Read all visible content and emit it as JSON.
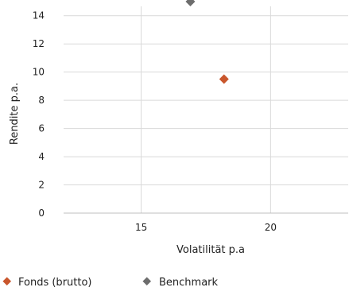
{
  "chart_data": {
    "type": "scatter",
    "title": "",
    "xlabel": "Volatilität p.a",
    "ylabel": "Rendite p.a.",
    "xlim": [
      12,
      23
    ],
    "ylim": [
      0,
      15
    ],
    "xticks": [
      15,
      20
    ],
    "yticks": [
      0,
      2,
      4,
      6,
      8,
      10,
      12,
      14
    ],
    "grid": {
      "vertical": true,
      "horizontal": true
    },
    "legend_position": "bottom-left",
    "series": [
      {
        "name": "Fonds (brutto)",
        "color": "#c9562c",
        "marker": "diamond",
        "points": [
          {
            "x": 18.2,
            "y": 9.5
          }
        ]
      },
      {
        "name": "Benchmark",
        "color": "#6d6d6d",
        "marker": "diamond",
        "points": [
          {
            "x": 16.9,
            "y": 15.0
          }
        ]
      }
    ]
  }
}
